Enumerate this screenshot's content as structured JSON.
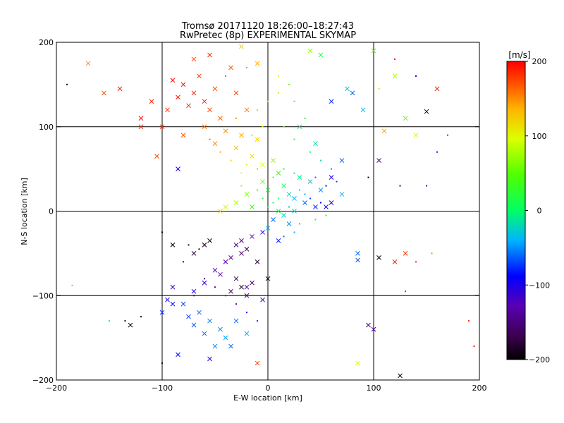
{
  "chart_data": {
    "type": "scatter",
    "title": "Tromsø 20171120 18:26:00–18:27:43",
    "subtitle": "RwPretec (8p) EXPERIMENTAL SKYMAP",
    "xlabel": "E-W location [km]",
    "ylabel": "N-S location [km]",
    "xlim": [
      -200,
      200
    ],
    "ylim": [
      -200,
      200
    ],
    "xticks": [
      -200,
      -100,
      0,
      100,
      200
    ],
    "yticks": [
      -200,
      -100,
      0,
      100,
      200
    ],
    "grid_lines": [
      -100,
      0,
      100
    ],
    "colorbar": {
      "label": "[m/s]",
      "min": -200,
      "max": 200,
      "ticks": [
        200,
        100,
        0,
        -100,
        -200
      ],
      "colormap": "rainbow"
    },
    "marker_types": [
      "x",
      "dot"
    ],
    "points": [
      [
        -60,
        130,
        190,
        "x"
      ],
      [
        -70,
        140,
        185,
        "x"
      ],
      [
        -55,
        120,
        180,
        "x"
      ],
      [
        -80,
        150,
        195,
        "x"
      ],
      [
        -65,
        160,
        175,
        "x"
      ],
      [
        -75,
        125,
        188,
        "x"
      ],
      [
        -85,
        135,
        192,
        "x"
      ],
      [
        -50,
        145,
        170,
        "x"
      ],
      [
        -45,
        110,
        165,
        "x"
      ],
      [
        -90,
        155,
        198,
        "x"
      ],
      [
        -60,
        100,
        160,
        "x"
      ],
      [
        -40,
        95,
        150,
        "x"
      ],
      [
        -30,
        140,
        175,
        "x"
      ],
      [
        -20,
        120,
        160,
        "x"
      ],
      [
        -95,
        120,
        185,
        "x"
      ],
      [
        -110,
        130,
        190,
        "x"
      ],
      [
        -100,
        100,
        180,
        "x"
      ],
      [
        -70,
        180,
        175,
        "x"
      ],
      [
        -55,
        185,
        185,
        "x"
      ],
      [
        -35,
        170,
        170,
        "x"
      ],
      [
        -120,
        110,
        195,
        "x"
      ],
      [
        -140,
        145,
        190,
        "x"
      ],
      [
        -80,
        90,
        170,
        "x"
      ],
      [
        -50,
        80,
        155,
        "x"
      ],
      [
        -25,
        90,
        140,
        "x"
      ],
      [
        -10,
        85,
        120,
        "x"
      ],
      [
        -30,
        75,
        135,
        "x"
      ],
      [
        -15,
        65,
        110,
        "x"
      ],
      [
        -5,
        55,
        95,
        "x"
      ],
      [
        5,
        60,
        70,
        "x"
      ],
      [
        10,
        45,
        40,
        "x"
      ],
      [
        -5,
        35,
        60,
        "x"
      ],
      [
        0,
        25,
        20,
        "x"
      ],
      [
        15,
        30,
        10,
        "x"
      ],
      [
        20,
        20,
        -20,
        "x"
      ],
      [
        25,
        15,
        -40,
        "x"
      ],
      [
        35,
        10,
        -60,
        "x"
      ],
      [
        45,
        5,
        -80,
        "x"
      ],
      [
        55,
        5,
        -100,
        "x"
      ],
      [
        60,
        10,
        -90,
        "x"
      ],
      [
        30,
        40,
        -10,
        "x"
      ],
      [
        40,
        35,
        -30,
        "x"
      ],
      [
        50,
        25,
        -50,
        "x"
      ],
      [
        -20,
        20,
        60,
        "x"
      ],
      [
        -30,
        10,
        80,
        "x"
      ],
      [
        -40,
        5,
        100,
        "x"
      ],
      [
        -45,
        0,
        120,
        "x"
      ],
      [
        -15,
        5,
        40,
        "x"
      ],
      [
        10,
        0,
        10,
        "x"
      ],
      [
        25,
        0,
        -20,
        "x"
      ],
      [
        -30,
        -40,
        -150,
        "x"
      ],
      [
        -25,
        -50,
        -160,
        "x"
      ],
      [
        -20,
        -45,
        -170,
        "x"
      ],
      [
        -35,
        -55,
        -140,
        "x"
      ],
      [
        -40,
        -60,
        -130,
        "x"
      ],
      [
        -50,
        -70,
        -120,
        "x"
      ],
      [
        -30,
        -80,
        -180,
        "x"
      ],
      [
        -25,
        -90,
        -190,
        "x"
      ],
      [
        -35,
        -95,
        -170,
        "x"
      ],
      [
        -20,
        -100,
        -160,
        "x"
      ],
      [
        -15,
        -85,
        -150,
        "x"
      ],
      [
        -45,
        -75,
        -140,
        "x"
      ],
      [
        -60,
        -85,
        -110,
        "x"
      ],
      [
        -70,
        -95,
        -100,
        "x"
      ],
      [
        -80,
        -110,
        -70,
        "x"
      ],
      [
        -65,
        -120,
        -60,
        "x"
      ],
      [
        -55,
        -130,
        -55,
        "x"
      ],
      [
        -45,
        -140,
        -50,
        "x"
      ],
      [
        -40,
        -150,
        -45,
        "x"
      ],
      [
        -35,
        -160,
        -60,
        "x"
      ],
      [
        -60,
        -145,
        -55,
        "x"
      ],
      [
        -50,
        -160,
        -50,
        "x"
      ],
      [
        -70,
        -135,
        -65,
        "x"
      ],
      [
        -75,
        -125,
        -75,
        "x"
      ],
      [
        -90,
        -110,
        -85,
        "x"
      ],
      [
        -100,
        -120,
        -80,
        "x"
      ],
      [
        -85,
        -170,
        -90,
        "x"
      ],
      [
        -55,
        -175,
        -95,
        "x"
      ],
      [
        -30,
        -130,
        -60,
        "x"
      ],
      [
        -20,
        -145,
        -40,
        "x"
      ],
      [
        -85,
        50,
        -100,
        "x"
      ],
      [
        -90,
        -90,
        -110,
        "x"
      ],
      [
        -95,
        -105,
        -100,
        "x"
      ],
      [
        -130,
        -135,
        -190,
        "x"
      ],
      [
        -90,
        -40,
        -200,
        "x"
      ],
      [
        -60,
        -40,
        -190,
        "x"
      ],
      [
        -70,
        -50,
        -180,
        "x"
      ],
      [
        -55,
        -35,
        -195,
        "x"
      ],
      [
        -20,
        -90,
        -130,
        "x"
      ],
      [
        -5,
        -105,
        -120,
        "x"
      ],
      [
        0,
        -80,
        -200,
        "x"
      ],
      [
        -10,
        -60,
        -180,
        "x"
      ],
      [
        -25,
        -35,
        -150,
        "x"
      ],
      [
        -15,
        -30,
        -120,
        "x"
      ],
      [
        -5,
        -25,
        -100,
        "x"
      ],
      [
        10,
        -35,
        -80,
        "x"
      ],
      [
        20,
        -15,
        -50,
        "x"
      ],
      [
        5,
        -10,
        -60,
        "x"
      ],
      [
        0,
        -20,
        -40,
        "x"
      ],
      [
        15,
        -5,
        -20,
        "x"
      ],
      [
        100,
        190,
        50,
        "x"
      ],
      [
        120,
        160,
        80,
        "x"
      ],
      [
        150,
        118,
        -200,
        "x"
      ],
      [
        160,
        145,
        190,
        "x"
      ],
      [
        80,
        140,
        -60,
        "x"
      ],
      [
        90,
        120,
        -40,
        "x"
      ],
      [
        110,
        95,
        140,
        "x"
      ],
      [
        130,
        110,
        60,
        "x"
      ],
      [
        140,
        90,
        100,
        "x"
      ],
      [
        105,
        60,
        -150,
        "x"
      ],
      [
        95,
        -135,
        -150,
        "x"
      ],
      [
        100,
        -140,
        -140,
        "x"
      ],
      [
        125,
        -195,
        -190,
        "x"
      ],
      [
        85,
        -50,
        -60,
        "x"
      ],
      [
        85,
        -58,
        -70,
        "x"
      ],
      [
        105,
        -55,
        -200,
        "x"
      ],
      [
        120,
        -60,
        190,
        "x"
      ],
      [
        130,
        -50,
        180,
        "x"
      ],
      [
        -10,
        -180,
        180,
        "x"
      ],
      [
        85,
        -180,
        90,
        "x"
      ],
      [
        -170,
        175,
        150,
        "x"
      ],
      [
        -155,
        140,
        170,
        "x"
      ],
      [
        -120,
        100,
        190,
        "x"
      ],
      [
        -105,
        65,
        175,
        "x"
      ],
      [
        50,
        185,
        10,
        "x"
      ],
      [
        60,
        130,
        -80,
        "x"
      ],
      [
        75,
        145,
        -30,
        "x"
      ],
      [
        40,
        190,
        70,
        "x"
      ],
      [
        -25,
        195,
        120,
        "x"
      ],
      [
        -10,
        175,
        140,
        "x"
      ],
      [
        30,
        100,
        0,
        "x"
      ],
      [
        45,
        80,
        -20,
        "x"
      ],
      [
        70,
        60,
        -60,
        "x"
      ],
      [
        60,
        40,
        -100,
        "x"
      ],
      [
        70,
        20,
        -40,
        "x"
      ],
      [
        -150,
        -130,
        -5,
        "dot"
      ],
      [
        -135,
        -130,
        -200,
        "dot"
      ],
      [
        -120,
        -125,
        -190,
        "dot"
      ],
      [
        -185,
        -88,
        40,
        "dot"
      ],
      [
        -190,
        150,
        -200,
        "dot"
      ],
      [
        -100,
        -25,
        -200,
        "dot"
      ],
      [
        -100,
        -180,
        -190,
        "dot"
      ],
      [
        190,
        -130,
        190,
        "dot"
      ],
      [
        195,
        -160,
        190,
        "dot"
      ],
      [
        130,
        -95,
        200,
        "dot"
      ],
      [
        140,
        -60,
        180,
        "dot"
      ],
      [
        155,
        -50,
        150,
        "dot"
      ],
      [
        150,
        30,
        -130,
        "dot"
      ],
      [
        160,
        70,
        -80,
        "dot"
      ],
      [
        95,
        40,
        -200,
        "dot"
      ],
      [
        125,
        30,
        -150,
        "dot"
      ],
      [
        170,
        90,
        190,
        "dot"
      ],
      [
        105,
        145,
        80,
        "dot"
      ],
      [
        120,
        180,
        190,
        "dot"
      ],
      [
        140,
        160,
        -90,
        "dot"
      ],
      [
        -20,
        55,
        90,
        "dot"
      ],
      [
        -25,
        45,
        100,
        "dot"
      ],
      [
        -10,
        50,
        60,
        "dot"
      ],
      [
        5,
        40,
        30,
        "dot"
      ],
      [
        15,
        50,
        20,
        "dot"
      ],
      [
        25,
        45,
        -10,
        "dot"
      ],
      [
        30,
        25,
        -20,
        "dot"
      ],
      [
        35,
        20,
        -40,
        "dot"
      ],
      [
        40,
        15,
        -70,
        "dot"
      ],
      [
        50,
        10,
        -90,
        "dot"
      ],
      [
        -5,
        15,
        20,
        "dot"
      ],
      [
        -10,
        25,
        40,
        "dot"
      ],
      [
        0,
        5,
        10,
        "dot"
      ],
      [
        5,
        10,
        -5,
        "dot"
      ],
      [
        10,
        15,
        5,
        "dot"
      ],
      [
        20,
        5,
        -30,
        "dot"
      ],
      [
        -25,
        30,
        70,
        "dot"
      ],
      [
        -35,
        60,
        120,
        "dot"
      ],
      [
        -45,
        70,
        140,
        "dot"
      ],
      [
        -55,
        85,
        160,
        "dot"
      ],
      [
        -30,
        110,
        150,
        "dot"
      ],
      [
        -10,
        120,
        130,
        "dot"
      ],
      [
        0,
        130,
        110,
        "dot"
      ],
      [
        10,
        140,
        90,
        "dot"
      ],
      [
        20,
        150,
        60,
        "dot"
      ],
      [
        -40,
        160,
        170,
        "dot"
      ],
      [
        -20,
        170,
        150,
        "dot"
      ],
      [
        10,
        160,
        100,
        "dot"
      ],
      [
        25,
        130,
        40,
        "dot"
      ],
      [
        35,
        110,
        20,
        "dot"
      ],
      [
        -60,
        -80,
        -150,
        "dot"
      ],
      [
        -50,
        -90,
        -140,
        "dot"
      ],
      [
        -40,
        -100,
        -130,
        "dot"
      ],
      [
        -30,
        -110,
        -120,
        "dot"
      ],
      [
        -20,
        -120,
        -100,
        "dot"
      ],
      [
        -10,
        -130,
        -80,
        "dot"
      ],
      [
        -70,
        -100,
        -90,
        "dot"
      ],
      [
        -80,
        -60,
        -170,
        "dot"
      ],
      [
        -75,
        -40,
        -180,
        "dot"
      ],
      [
        -65,
        -45,
        -190,
        "dot"
      ],
      [
        15,
        -30,
        -60,
        "dot"
      ],
      [
        25,
        -25,
        -40,
        "dot"
      ],
      [
        30,
        -15,
        -20,
        "dot"
      ],
      [
        45,
        -10,
        0,
        "dot"
      ],
      [
        55,
        -5,
        20,
        "dot"
      ],
      [
        -15,
        90,
        120,
        "dot"
      ],
      [
        -5,
        100,
        100,
        "dot"
      ],
      [
        15,
        100,
        60,
        "dot"
      ],
      [
        25,
        85,
        30,
        "dot"
      ],
      [
        40,
        70,
        0,
        "dot"
      ],
      [
        50,
        60,
        -20,
        "dot"
      ],
      [
        60,
        50,
        -50,
        "dot"
      ],
      [
        65,
        35,
        -70,
        "dot"
      ],
      [
        55,
        30,
        -90,
        "dot"
      ],
      [
        45,
        40,
        -60,
        "dot"
      ]
    ]
  }
}
